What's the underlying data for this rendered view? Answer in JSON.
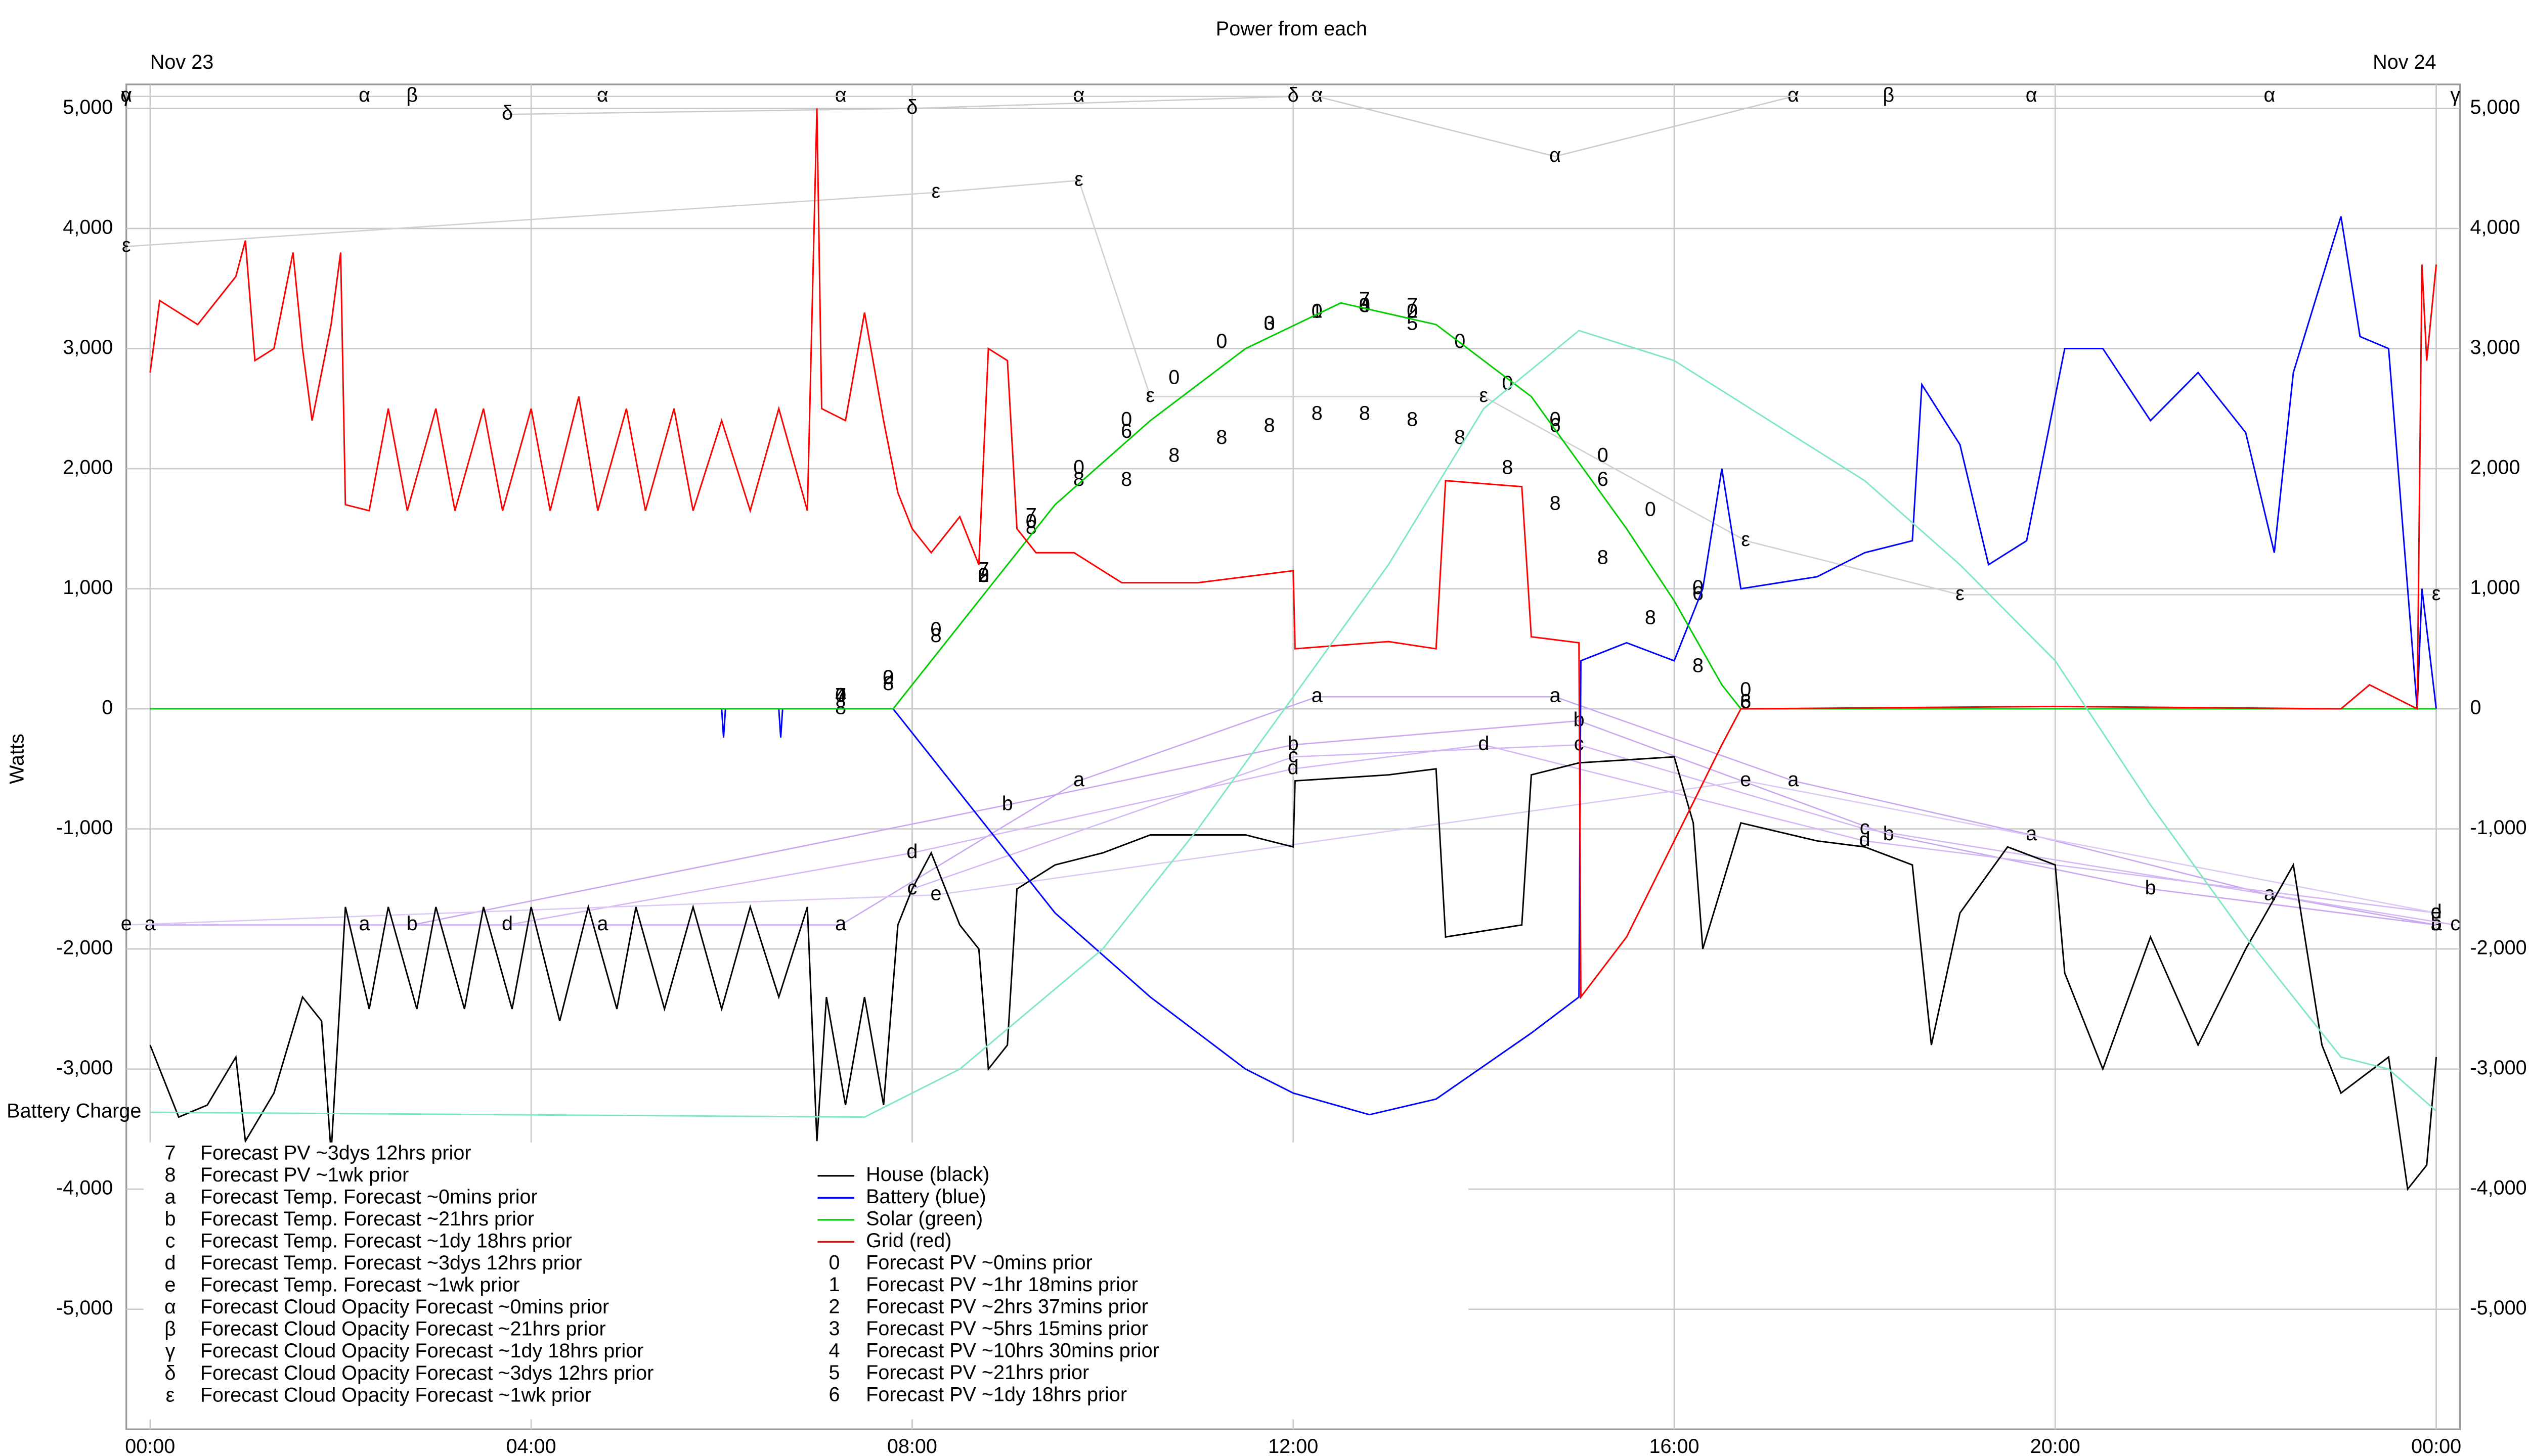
{
  "chart_data": {
    "type": "line",
    "title": "Power from each",
    "y_label": "Watts",
    "date_labels": [
      {
        "x": 0,
        "label": "Nov 23"
      },
      {
        "x": 24,
        "label": "Nov 24"
      }
    ],
    "xlim": [
      -0.25,
      24.25
    ],
    "ylim": [
      -6000,
      5200
    ],
    "xticks": [
      {
        "value": 0,
        "label": "00:00"
      },
      {
        "value": 4,
        "label": "04:00"
      },
      {
        "value": 8,
        "label": "08:00"
      },
      {
        "value": 12,
        "label": "12:00"
      },
      {
        "value": 16,
        "label": "16:00"
      },
      {
        "value": 20,
        "label": "20:00"
      },
      {
        "value": 24,
        "label": "00:00"
      }
    ],
    "yticks": [
      {
        "value": -5000,
        "label": "-5,000"
      },
      {
        "value": -4000,
        "label": "-4,000"
      },
      {
        "value": -3000,
        "label": "-3,000"
      },
      {
        "value": -2000,
        "label": "-2,000"
      },
      {
        "value": -1000,
        "label": "-1,000"
      },
      0,
      {
        "value": 1000,
        "label": "1,000"
      },
      {
        "value": 2000,
        "label": "2,000"
      },
      {
        "value": 3000,
        "label": "3,000"
      },
      {
        "value": 4000,
        "label": "4,000"
      },
      {
        "value": 5000,
        "label": "5,000"
      }
    ],
    "grid": true,
    "series": [
      {
        "name": "Forecast PV ~3dys 12hrs prior",
        "symbol": "7",
        "color": "#000000",
        "style": "markers",
        "x": [
          7.25,
          8.75,
          9.25,
          12.75,
          13.25
        ],
        "values": [
          100,
          1150,
          1600,
          3400,
          3350
        ]
      },
      {
        "name": "Forecast PV ~1wk prior",
        "symbol": "8",
        "color": "#000000",
        "style": "markers",
        "x": [
          7.25,
          7.75,
          8.25,
          8.75,
          9.25,
          9.75,
          10.25,
          10.75,
          11.25,
          11.75,
          12.25,
          12.75,
          13.25,
          13.75,
          14.25,
          14.75,
          15.25,
          15.75,
          16.25,
          16.75
        ],
        "values": [
          0,
          200,
          600,
          1100,
          1500,
          1900,
          1900,
          2100,
          2250,
          2350,
          2450,
          2450,
          2400,
          2250,
          2000,
          1700,
          1250,
          750,
          350,
          50
        ]
      },
      {
        "name": "Forecast Temp. Forecast ~0mins prior",
        "symbol": "a",
        "color": "#c9a8f0",
        "style": "line+markers",
        "x": [
          0,
          2.25,
          4.75,
          7.25,
          9.75,
          12.25,
          14.75,
          17.25,
          19.75,
          22.25,
          24
        ],
        "values": [
          -1800,
          -1800,
          -1800,
          -1800,
          -600,
          100,
          100,
          -600,
          -1050,
          -1550,
          -1800
        ]
      },
      {
        "name": "Forecast Temp. Forecast ~21hrs prior",
        "symbol": "b",
        "color": "#c9a8f0",
        "style": "line+markers",
        "x": [
          2.75,
          9,
          12,
          15,
          18.25,
          21,
          24
        ],
        "values": [
          -1800,
          -800,
          -300,
          -100,
          -1050,
          -1500,
          -1800
        ]
      },
      {
        "name": "Forecast Temp. Forecast ~1dy 18hrs prior",
        "symbol": "c",
        "color": "#d4b8f4",
        "style": "line+markers",
        "x": [
          8,
          12,
          15,
          18,
          24.2
        ],
        "values": [
          -1500,
          -400,
          -300,
          -1000,
          -1800
        ]
      },
      {
        "name": "Forecast Temp. Forecast ~3dys 12hrs prior",
        "symbol": "d",
        "color": "#d4b8f4",
        "style": "line+markers",
        "x": [
          3.75,
          8,
          12,
          14,
          18,
          24
        ],
        "values": [
          -1800,
          -1200,
          -500,
          -300,
          -1100,
          -1700
        ]
      },
      {
        "name": "Forecast Temp. Forecast ~1wk prior",
        "symbol": "e",
        "color": "#ddc8f6",
        "style": "line+markers",
        "x": [
          -0.25,
          8.25,
          16.75,
          24
        ],
        "values": [
          -1800,
          -1550,
          -600,
          -1700
        ]
      },
      {
        "name": "Forecast Cloud Opacity Forecast ~0mins prior",
        "symbol": "α",
        "color": "#cccccc",
        "style": "line+markers",
        "x": [
          -0.25,
          2.25,
          4.75,
          7.25,
          9.75,
          12.25,
          14.75,
          17.25,
          19.75,
          22.25
        ],
        "values": [
          5100,
          5100,
          5100,
          5100,
          5100,
          5100,
          4600,
          5100,
          5100,
          5100
        ]
      },
      {
        "name": "Forecast Cloud Opacity Forecast ~21hrs prior",
        "symbol": "β",
        "color": "#cccccc",
        "style": "line+markers",
        "x": [
          2.75,
          18.25
        ],
        "values": [
          5100,
          5100
        ]
      },
      {
        "name": "Forecast Cloud Opacity Forecast ~1dy 18hrs prior",
        "symbol": "γ",
        "color": "#cccccc",
        "style": "markers",
        "x": [
          -0.25,
          24.2
        ],
        "values": [
          5100,
          5100
        ]
      },
      {
        "name": "Forecast Cloud Opacity Forecast ~3dys 12hrs prior",
        "symbol": "δ",
        "color": "#cccccc",
        "style": "line+markers",
        "x": [
          3.75,
          8,
          12
        ],
        "values": [
          4950,
          5000,
          5100
        ]
      },
      {
        "name": "Forecast Cloud Opacity Forecast ~1wk prior",
        "symbol": "ε",
        "color": "#d0d0d0",
        "style": "line+markers",
        "x": [
          -0.25,
          8.25,
          9.75,
          10.5,
          14,
          16.75,
          19,
          24
        ],
        "values": [
          3850,
          4300,
          4400,
          2600,
          2600,
          1400,
          950,
          950
        ]
      },
      {
        "name": "House (black)",
        "color": "#000000",
        "style": "line",
        "x": [
          0,
          0.3,
          0.6,
          0.9,
          1,
          1.3,
          1.6,
          1.8,
          1.9,
          2.05,
          2.3,
          2.5,
          2.8,
          3,
          3.3,
          3.5,
          3.8,
          4,
          4.3,
          4.6,
          4.9,
          5.1,
          5.4,
          5.7,
          6,
          6.3,
          6.6,
          6.9,
          7,
          7.1,
          7.3,
          7.5,
          7.7,
          7.85,
          8,
          8.2,
          8.5,
          8.7,
          8.8,
          9,
          9.1,
          9.5,
          10,
          10.5,
          11.5,
          12,
          12.02,
          13,
          13.5,
          13.6,
          14.4,
          14.5,
          15,
          16,
          16.2,
          16.3,
          16.7,
          17.5,
          18,
          18.5,
          18.7,
          19,
          19.5,
          20,
          20.1,
          20.5,
          21,
          21.5,
          22,
          22.5,
          22.8,
          23,
          23.5,
          23.7,
          23.9,
          24
        ],
        "values": [
          -2800,
          -3400,
          -3300,
          -2900,
          -3600,
          -3200,
          -2400,
          -2600,
          -3700,
          -1650,
          -2500,
          -1650,
          -2500,
          -1650,
          -2500,
          -1650,
          -2500,
          -1650,
          -2600,
          -1650,
          -2500,
          -1650,
          -2500,
          -1650,
          -2500,
          -1650,
          -2400,
          -1650,
          -3600,
          -2400,
          -3300,
          -2400,
          -3300,
          -1800,
          -1500,
          -1200,
          -1800,
          -2000,
          -3000,
          -2800,
          -1500,
          -1300,
          -1200,
          -1050,
          -1050,
          -1150,
          -600,
          -550,
          -500,
          -1900,
          -1800,
          -550,
          -450,
          -400,
          -950,
          -2000,
          -950,
          -1100,
          -1150,
          -1300,
          -2800,
          -1700,
          -1150,
          -1300,
          -2200,
          -3000,
          -1900,
          -2800,
          -2000,
          -1300,
          -2800,
          -3200,
          -2900,
          -4000,
          -3800,
          -2900
        ]
      },
      {
        "name": "Battery (blue)",
        "color": "#0000ff",
        "style": "line",
        "x": [
          0,
          6,
          6.02,
          6.04,
          6.6,
          6.62,
          6.64,
          7.8,
          8.5,
          9.5,
          10.5,
          11.5,
          12,
          12.8,
          13.5,
          14.5,
          15,
          15.02,
          15.5,
          16,
          16.3,
          16.5,
          16.7,
          17.5,
          18,
          18.5,
          18.6,
          19,
          19.3,
          19.7,
          20.1,
          20.5,
          21,
          21.5,
          22,
          22.3,
          22.5,
          23,
          23.2,
          23.5,
          23.8,
          23.85,
          24
        ],
        "values": [
          0,
          0,
          -240,
          0,
          0,
          -240,
          0,
          0,
          -700,
          -1700,
          -2400,
          -3000,
          -3200,
          -3380,
          -3250,
          -2700,
          -2400,
          400,
          550,
          400,
          1000,
          2000,
          1000,
          1100,
          1300,
          1400,
          2700,
          2200,
          1200,
          1400,
          3000,
          3000,
          2400,
          2800,
          2300,
          1300,
          2800,
          4100,
          3100,
          3000,
          0,
          1000,
          0
        ]
      },
      {
        "name": "Solar (green)",
        "color": "#00cc00",
        "style": "line",
        "x": [
          0,
          7.8,
          8.5,
          9.5,
          10.5,
          11.5,
          12.5,
          13.5,
          14.5,
          15.5,
          16,
          16.5,
          16.7,
          24
        ],
        "values": [
          0,
          0,
          700,
          1700,
          2400,
          3000,
          3380,
          3200,
          2600,
          1500,
          900,
          200,
          0,
          0
        ]
      },
      {
        "name": "Grid (red)",
        "color": "#ff0000",
        "style": "line",
        "x": [
          0,
          0.1,
          0.5,
          0.9,
          1,
          1.1,
          1.3,
          1.5,
          1.6,
          1.7,
          1.9,
          2,
          2.05,
          2.3,
          2.5,
          2.7,
          3,
          3.2,
          3.5,
          3.7,
          4,
          4.2,
          4.5,
          4.7,
          5,
          5.2,
          5.5,
          5.7,
          6,
          6.3,
          6.6,
          6.9,
          7,
          7.05,
          7.3,
          7.5,
          7.7,
          7.85,
          8,
          8.2,
          8.5,
          8.7,
          8.8,
          9,
          9.1,
          9.3,
          9.7,
          10,
          10.2,
          11,
          12,
          12.02,
          13,
          13.5,
          13.6,
          14.4,
          14.5,
          15,
          15.02,
          15.5,
          16,
          16.5,
          16.7,
          20,
          23,
          23.3,
          23.8,
          23.85,
          23.9,
          24
        ],
        "values": [
          2800,
          3400,
          3200,
          3600,
          3900,
          2900,
          3000,
          3800,
          3000,
          2400,
          3200,
          3800,
          1700,
          1650,
          2500,
          1650,
          2500,
          1650,
          2500,
          1650,
          2500,
          1650,
          2600,
          1650,
          2500,
          1650,
          2500,
          1650,
          2400,
          1650,
          2500,
          1650,
          5000,
          2500,
          2400,
          3300,
          2400,
          1800,
          1500,
          1300,
          1600,
          1200,
          3000,
          2900,
          1500,
          1300,
          1300,
          1150,
          1050,
          1050,
          1150,
          500,
          560,
          500,
          1900,
          1850,
          600,
          550,
          -2400,
          -1900,
          -1100,
          -300,
          0,
          20,
          0,
          200,
          0,
          3700,
          2900,
          3700
        ]
      },
      {
        "name": "Forecast PV ~0mins prior",
        "symbol": "0",
        "color": "#000000",
        "style": "markers",
        "x": [
          7.25,
          7.75,
          8.25,
          8.75,
          9.25,
          9.75,
          10.25,
          10.75,
          11.25,
          11.75,
          12.25,
          12.75,
          13.25,
          13.75,
          14.25,
          14.75,
          15.25,
          15.75,
          16.25,
          16.75
        ],
        "values": [
          100,
          250,
          650,
          1100,
          1550,
          2000,
          2400,
          2750,
          3050,
          3200,
          3300,
          3350,
          3300,
          3050,
          2700,
          2400,
          2100,
          1650,
          1000,
          150
        ]
      },
      {
        "name": "Forecast PV ~1hr 18mins prior",
        "symbol": "1",
        "color": "#000000",
        "style": "markers",
        "x": [
          12.25
        ],
        "values": [
          3300
        ]
      },
      {
        "name": "Forecast PV ~2hrs 37mins prior",
        "symbol": "2",
        "color": "#000000",
        "style": "markers",
        "x": [
          7.75,
          8.75,
          13.25
        ],
        "values": [
          250,
          1100,
          3300
        ]
      },
      {
        "name": "Forecast PV ~5hrs 15mins prior",
        "symbol": "3",
        "color": "#000000",
        "style": "markers",
        "x": [
          11.75,
          12.75
        ],
        "values": [
          3200,
          3350
        ]
      },
      {
        "name": "Forecast PV ~10hrs 30mins prior",
        "symbol": "4",
        "color": "#000000",
        "style": "markers",
        "x": [
          7.25,
          12.75
        ],
        "values": [
          100,
          3350
        ]
      },
      {
        "name": "Forecast PV ~21hrs prior",
        "symbol": "5",
        "color": "#000000",
        "style": "markers",
        "x": [
          13.25
        ],
        "values": [
          3200
        ]
      },
      {
        "name": "Forecast PV ~1dy 18hrs prior",
        "symbol": "6",
        "color": "#000000",
        "style": "markers",
        "x": [
          10.25,
          14.75,
          15.25,
          16.25,
          16.75
        ],
        "values": [
          2300,
          2350,
          1900,
          950,
          50
        ]
      },
      {
        "name": "Battery Charge",
        "color": "#80e8c0",
        "style": "line",
        "in_legend": false,
        "x": [
          0,
          7.5,
          8.5,
          10,
          11,
          12,
          13,
          14,
          15,
          16,
          17,
          18,
          19,
          20,
          21,
          22,
          23,
          23.5,
          24
        ],
        "values": [
          -3360,
          -3400,
          -3000,
          -2000,
          -1000,
          100,
          1200,
          2500,
          3150,
          2900,
          2400,
          1900,
          1200,
          400,
          -800,
          -1900,
          -2900,
          -3000,
          -3350
        ]
      }
    ]
  }
}
